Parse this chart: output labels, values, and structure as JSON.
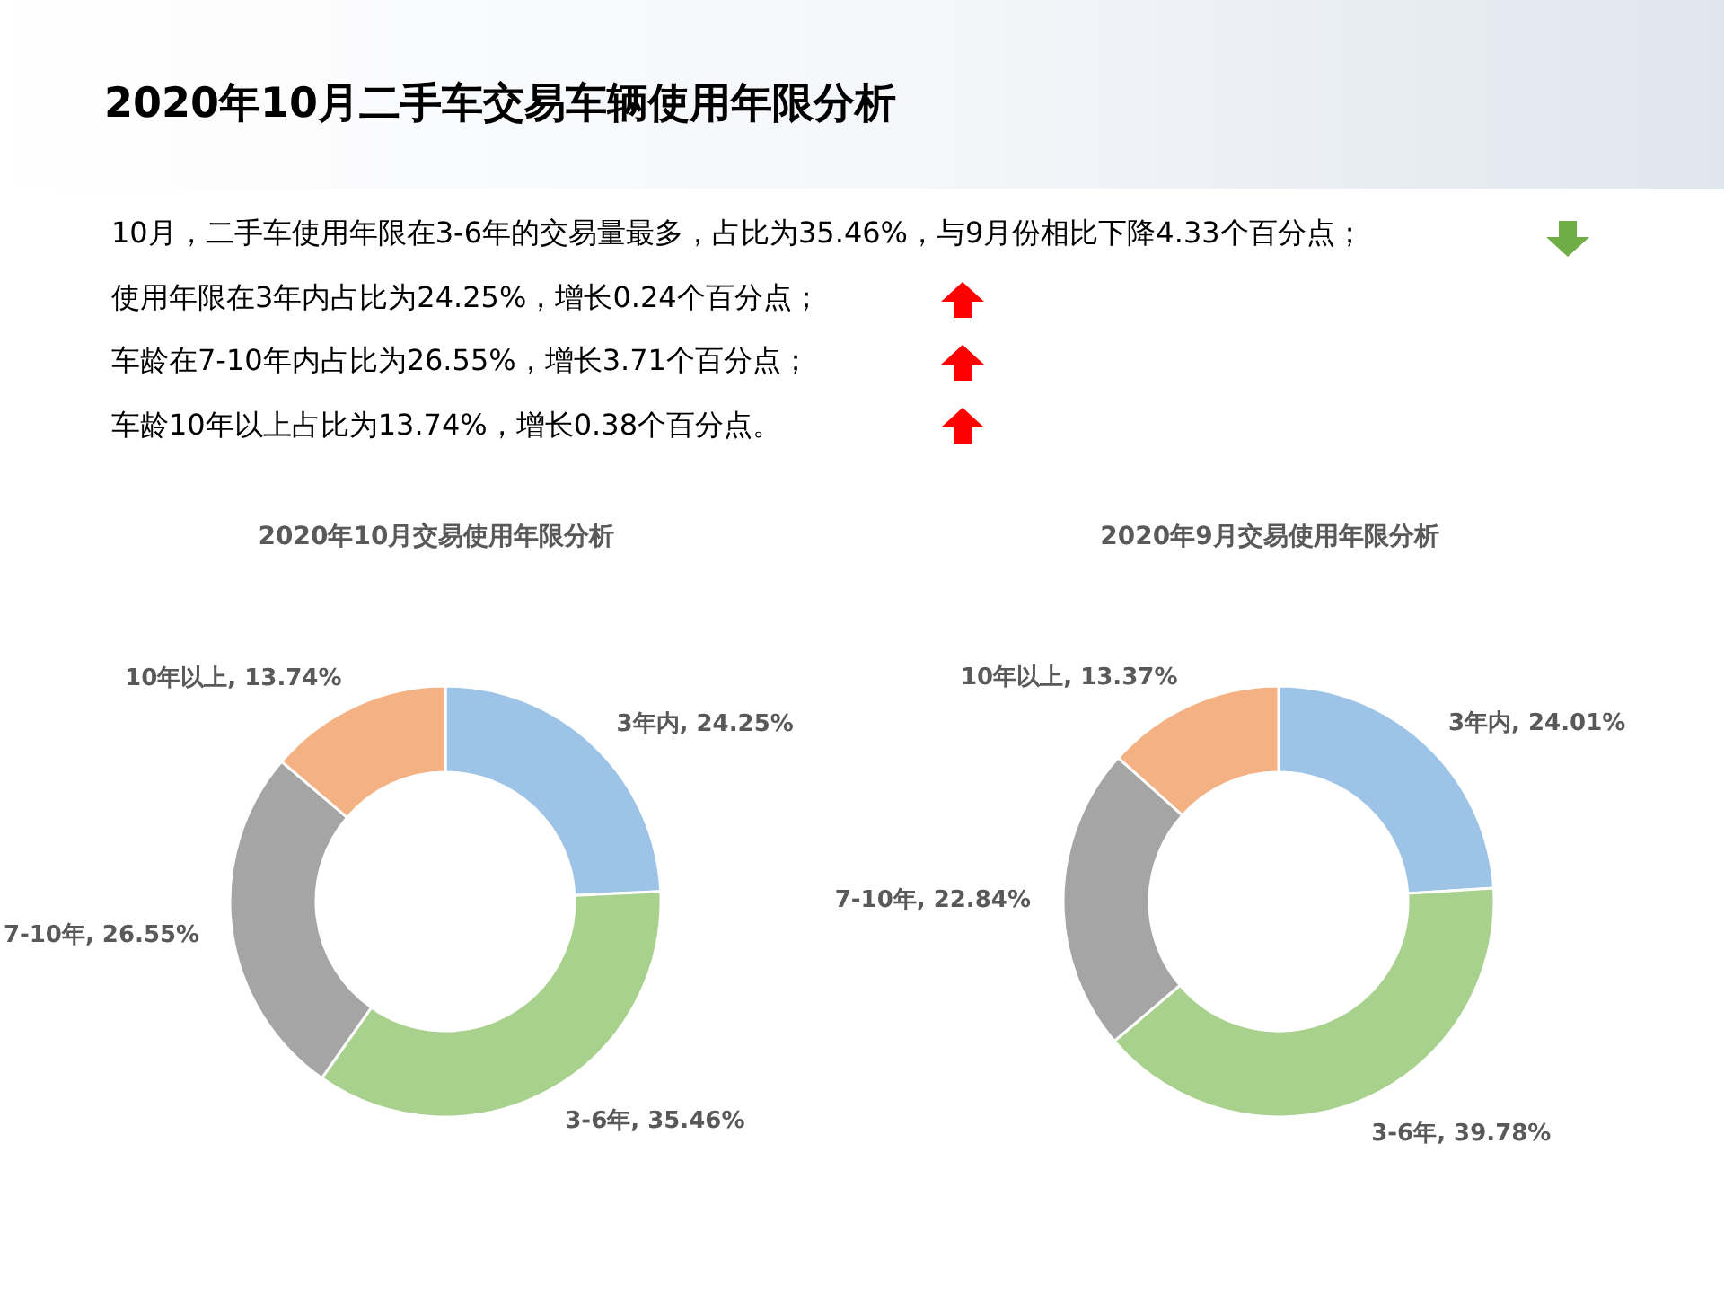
{
  "chart_data": [
    {
      "type": "other",
      "title": "2020年10月二手车交易车辆使用年限分析",
      "annotations": [
        "10月，二手车使用年限在3-6年的交易量最多，占比为35.46%，与9月份相比下降4.33个百分点；",
        "使用年限在3年内占比为24.25%，增长0.24个百分点；",
        "车龄在7-10年内占比为26.55%，增长3.71个百分点；",
        "车龄10年以上占比为13.74%，增长0.38个百分点。"
      ]
    },
    {
      "type": "donut",
      "title": "2020年10月交易使用年限分析",
      "categories": [
        "3年内",
        "3-6年",
        "7-10年",
        "10年以上"
      ],
      "values": [
        24.25,
        35.46,
        26.55,
        13.74
      ],
      "value_labels": [
        "24.25%",
        "35.46%",
        "26.55%",
        "13.74%"
      ],
      "colors": [
        "#9dc3e6",
        "#a9d18e",
        "#a5a5a5",
        "#f4b183"
      ],
      "legend": false
    },
    {
      "type": "donut",
      "title": "2020年9月交易使用年限分析",
      "categories": [
        "3年内",
        "3-6年",
        "7-10年",
        "10年以上"
      ],
      "values": [
        24.01,
        39.78,
        22.84,
        13.37
      ],
      "value_labels": [
        "24.01%",
        "39.78%",
        "22.84%",
        "13.37%"
      ],
      "colors": [
        "#9dc3e6",
        "#a9d18e",
        "#a5a5a5",
        "#f4b183"
      ],
      "legend": false
    }
  ]
}
